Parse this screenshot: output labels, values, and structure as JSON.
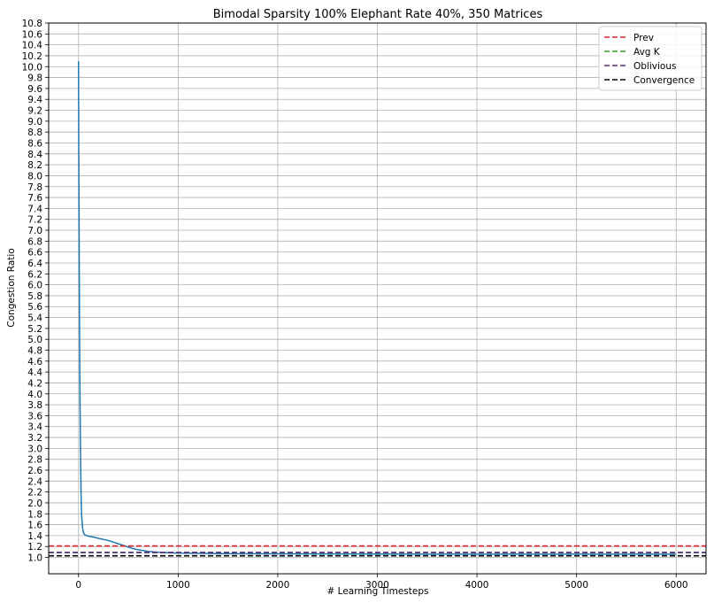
{
  "chart_data": {
    "type": "line",
    "title": "Bimodal Sparsity 100% Elephant Rate 40%, 350 Matrices",
    "xlabel": "# Learning Timesteps",
    "ylabel": "Congestion Ratio",
    "xlim": [
      -300,
      6300
    ],
    "ylim": [
      0.7,
      10.8
    ],
    "xticks": [
      0,
      1000,
      2000,
      3000,
      4000,
      5000,
      6000
    ],
    "yticks": [
      1.0,
      1.2,
      1.4,
      1.6,
      1.8,
      2.0,
      2.2,
      2.4,
      2.6,
      2.8,
      3.0,
      3.2,
      3.4,
      3.6,
      3.8,
      4.0,
      4.2,
      4.4,
      4.6,
      4.8,
      5.0,
      5.2,
      5.4,
      5.6,
      5.8,
      6.0,
      6.2,
      6.4,
      6.6,
      6.8,
      7.0,
      7.2,
      7.4,
      7.6,
      7.8,
      8.0,
      8.2,
      8.4,
      8.6,
      8.8,
      9.0,
      9.2,
      9.4,
      9.6,
      9.8,
      10.0,
      10.2,
      10.4,
      10.6,
      10.8
    ],
    "ytick_labels": [
      "1.0",
      "1.2",
      "1.4",
      "1.6",
      "1.8",
      "2.0",
      "2.2",
      "2.4",
      "2.6",
      "2.8",
      "3.0",
      "3.2",
      "3.4",
      "3.6",
      "3.8",
      "4.0",
      "4.2",
      "4.4",
      "4.6",
      "4.8",
      "5.0",
      "5.2",
      "5.4",
      "5.6",
      "5.8",
      "6.0",
      "6.2",
      "6.4",
      "6.6",
      "6.8",
      "7.0",
      "7.2",
      "7.4",
      "7.6",
      "7.8",
      "8.0",
      "8.2",
      "8.4",
      "8.6",
      "8.8",
      "9.0",
      "9.2",
      "9.4",
      "9.6",
      "9.8",
      "10.0",
      "10.2",
      "10.4",
      "10.6",
      "10.8"
    ],
    "grid": true,
    "legend_position": "top-right",
    "series": [
      {
        "name": "",
        "color": "#1f77b4",
        "style": "solid",
        "x": [
          0,
          2,
          5,
          8,
          12,
          15,
          20,
          25,
          30,
          40,
          50,
          60,
          80,
          100,
          130,
          160,
          200,
          250,
          300,
          350,
          400,
          450,
          500,
          550,
          600,
          700,
          800,
          900,
          1000,
          1200,
          1400,
          1600,
          2000,
          2500,
          3000,
          3500,
          4000,
          4500,
          5000,
          5500,
          6000
        ],
        "values": [
          10.1,
          8.5,
          7.3,
          6.0,
          4.6,
          3.8,
          2.9,
          2.2,
          1.8,
          1.55,
          1.45,
          1.42,
          1.4,
          1.39,
          1.38,
          1.37,
          1.35,
          1.33,
          1.31,
          1.28,
          1.25,
          1.22,
          1.19,
          1.16,
          1.14,
          1.11,
          1.095,
          1.085,
          1.08,
          1.075,
          1.07,
          1.068,
          1.065,
          1.063,
          1.062,
          1.06,
          1.06,
          1.06,
          1.06,
          1.06,
          1.06
        ]
      },
      {
        "name": "Prev",
        "color": "#d62728",
        "style": "dashed",
        "constant": 1.21
      },
      {
        "name": "Avg K",
        "color": "#2ca02c",
        "style": "dashed",
        "constant": 1.09
      },
      {
        "name": "Oblivious",
        "color": "#5a2d78",
        "style": "dashed",
        "constant": 1.09
      },
      {
        "name": "Convergence",
        "color": "#000000",
        "style": "dashed",
        "constant": 1.03
      }
    ]
  }
}
